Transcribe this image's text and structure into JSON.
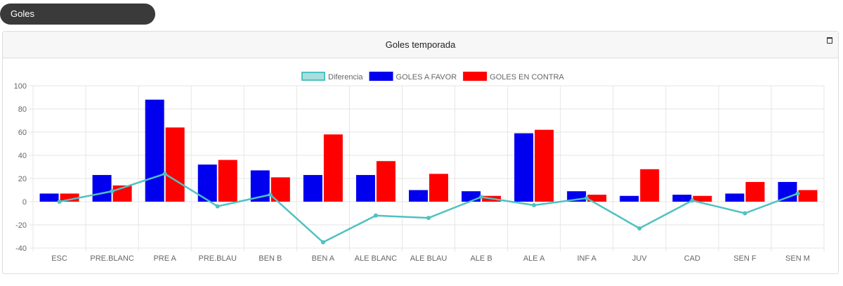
{
  "tab": {
    "label": "Goles"
  },
  "panel": {
    "title": "Goles temporada"
  },
  "colors": {
    "favor": "#0000ee",
    "contra": "#ff0000",
    "diferencia": "#4fc1c1",
    "grid": "#e6e6e6"
  },
  "chart_data": {
    "type": "bar",
    "categories": [
      "ESC",
      "PRE.BLANC",
      "PRE A",
      "PRE.BLAU",
      "BEN B",
      "BEN A",
      "ALE BLANC",
      "ALE BLAU",
      "ALE B",
      "ALE A",
      "INF A",
      "JUV",
      "CAD",
      "SEN F",
      "SEN M"
    ],
    "series": [
      {
        "name": "GOLES A FAVOR",
        "type": "bar",
        "values": [
          7,
          23,
          88,
          32,
          27,
          23,
          23,
          10,
          9,
          59,
          9,
          5,
          6,
          7,
          17
        ]
      },
      {
        "name": "GOLES EN CONTRA",
        "type": "bar",
        "values": [
          7,
          14,
          64,
          36,
          21,
          58,
          35,
          24,
          5,
          62,
          6,
          28,
          5,
          17,
          10
        ]
      },
      {
        "name": "Diferencia",
        "type": "line",
        "values": [
          0,
          9,
          24,
          -4,
          6,
          -35,
          -12,
          -14,
          4,
          -3,
          3,
          -23,
          1,
          -10,
          7
        ]
      }
    ],
    "legend": [
      "Diferencia",
      "GOLES A FAVOR",
      "GOLES EN CONTRA"
    ],
    "ylim": [
      -40,
      100
    ],
    "yticks": [
      "100",
      "80",
      "60",
      "40",
      "20",
      "0",
      "-20",
      "-40"
    ],
    "legend_position": "top",
    "grid": true
  }
}
